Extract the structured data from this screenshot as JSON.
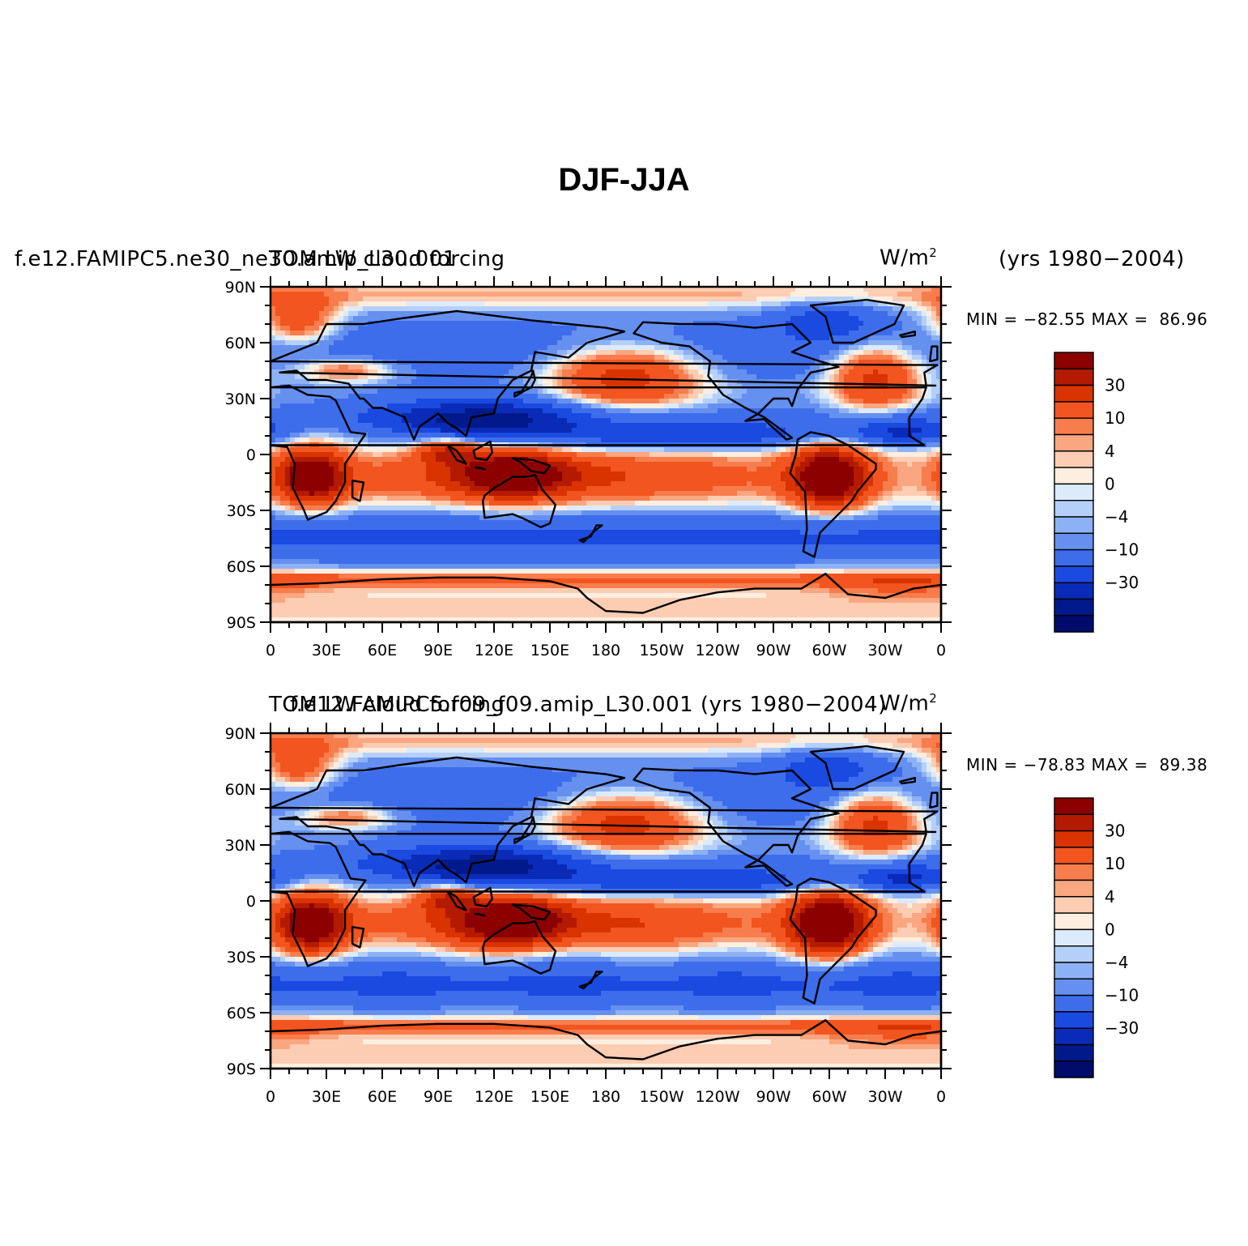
{
  "figure": {
    "title": "DJF-JJA"
  },
  "panels": [
    {
      "left_title": "f.e12.FAMIPC5.ne30_ne30.amip_L30.001",
      "center_title": "TOM LW cloud forcing",
      "units": "W/m",
      "units_exp": "2",
      "years": "(yrs 1980−2004)",
      "min_label": "MIN =",
      "min": "−82.55",
      "max_label": "MAX =",
      "max": "86.96"
    },
    {
      "left_title": "f.e12.FAMIPC5.f09_f09.amip_L30.001 (yrs 1980−2004)",
      "center_title": "TOM LW cloud forcing",
      "units": "W/m",
      "units_exp": "2",
      "years": "",
      "min_label": "MIN =",
      "min": "−78.83",
      "max_label": "MAX =",
      "max": "89.38"
    }
  ],
  "axes": {
    "lat_ticks": [
      "90N",
      "60N",
      "30N",
      "0",
      "30S",
      "60S",
      "90S"
    ],
    "lon_ticks": [
      "0",
      "30E",
      "60E",
      "90E",
      "120E",
      "150E",
      "180",
      "150W",
      "120W",
      "90W",
      "60W",
      "30W",
      "0"
    ]
  },
  "colorbar": {
    "labels": [
      "30",
      "10",
      "4",
      "0",
      "−4",
      "−10",
      "−30"
    ],
    "colors": [
      "#8c0000",
      "#b31a00",
      "#d93300",
      "#f2551f",
      "#f77d4d",
      "#faa680",
      "#fccdb3",
      "#feeee0",
      "#dcebfb",
      "#b5d0f8",
      "#8db1f5",
      "#6590f0",
      "#3d6deb",
      "#1a4ae0",
      "#0a2bb8",
      "#001a8c",
      "#000b6b"
    ]
  },
  "chart_data": {
    "type": "heatmap",
    "title": "DJF-JJA",
    "variable": "TOM LW cloud forcing",
    "units": "W/m2",
    "projection": "cylindrical equidistant",
    "xlabel": "",
    "ylabel": "",
    "lon_range": [
      0,
      360
    ],
    "lat_range": [
      -90,
      90
    ],
    "contour_levels": [
      -50,
      -40,
      -30,
      -20,
      -10,
      -6,
      -4,
      -2,
      0,
      2,
      4,
      6,
      10,
      20,
      30,
      40
    ],
    "series": [
      {
        "name": "f.e12.FAMIPC5.ne30_ne30.amip_L30.001",
        "min": -82.55,
        "max": 86.96
      },
      {
        "name": "f.e12.FAMIPC5.f09_f09.amip_L30.001",
        "min": -78.83,
        "max": 89.38
      }
    ]
  }
}
